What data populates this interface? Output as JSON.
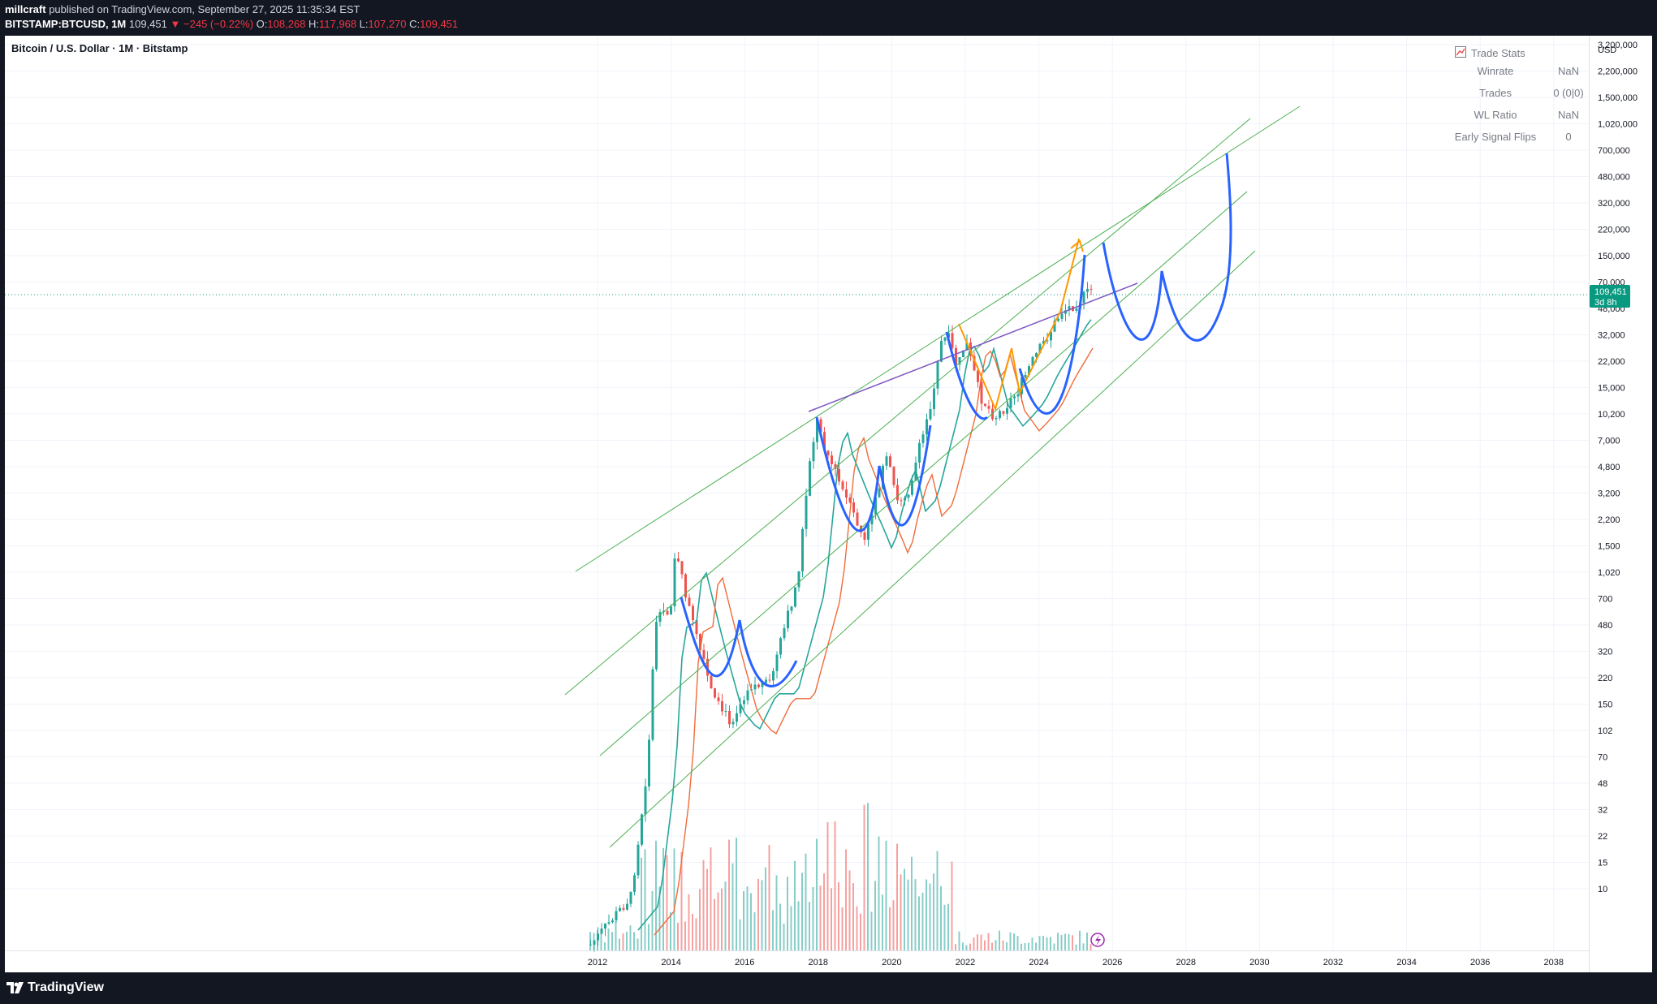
{
  "header": {
    "author": "millcraft",
    "published_text": "published on TradingView.com, September 27, 2025 11:35:34 EST",
    "symbol": "BITSTAMP:BTCUSD, 1M",
    "last": "109,451",
    "change": "−245 (−0.22%)",
    "open_label": "O:",
    "open": "108,268",
    "high_label": "H:",
    "high": "117,968",
    "low_label": "L:",
    "low": "107,270",
    "close_label": "C:",
    "close": "109,451"
  },
  "chart_title": "Bitcoin / U.S. Dollar · 1M · Bitstamp",
  "currency": "USD",
  "price_tag": {
    "value": "109,451",
    "countdown": "3d 8h"
  },
  "trade_stats": {
    "title": "Trade Stats",
    "rows": [
      {
        "k": "Winrate",
        "v": "NaN"
      },
      {
        "k": "Trades",
        "v": "0 (0|0)"
      },
      {
        "k": "WL Ratio",
        "v": "NaN"
      },
      {
        "k": "Early Signal Flips",
        "v": "0"
      }
    ]
  },
  "y_ticks": [
    "3,200,000",
    "2,200,000",
    "1,500,000",
    "1,020,000",
    "700,000",
    "480,000",
    "320,000",
    "220,000",
    "150,000",
    "70,000",
    "48,000",
    "32,000",
    "22,000",
    "15,000",
    "10,200",
    "7,000",
    "4,800",
    "3,200",
    "2,200",
    "1,500",
    "1,020",
    "700",
    "480",
    "320",
    "220",
    "150",
    "102",
    "70",
    "48",
    "32",
    "22",
    "15",
    "10"
  ],
  "x_ticks": [
    "2012",
    "2014",
    "2016",
    "2018",
    "2020",
    "2022",
    "2024",
    "2026",
    "2028",
    "2030",
    "2032",
    "2034",
    "2036",
    "2038"
  ],
  "brand": "TradingView",
  "colors": {
    "up": "#26a69a",
    "down": "#ef5350",
    "channel": "#4caf50",
    "drawing_blue": "#2962ff",
    "drawing_orange": "#ff9800",
    "drawing_purple": "#7e57c2",
    "tag_bg": "#089981"
  }
}
